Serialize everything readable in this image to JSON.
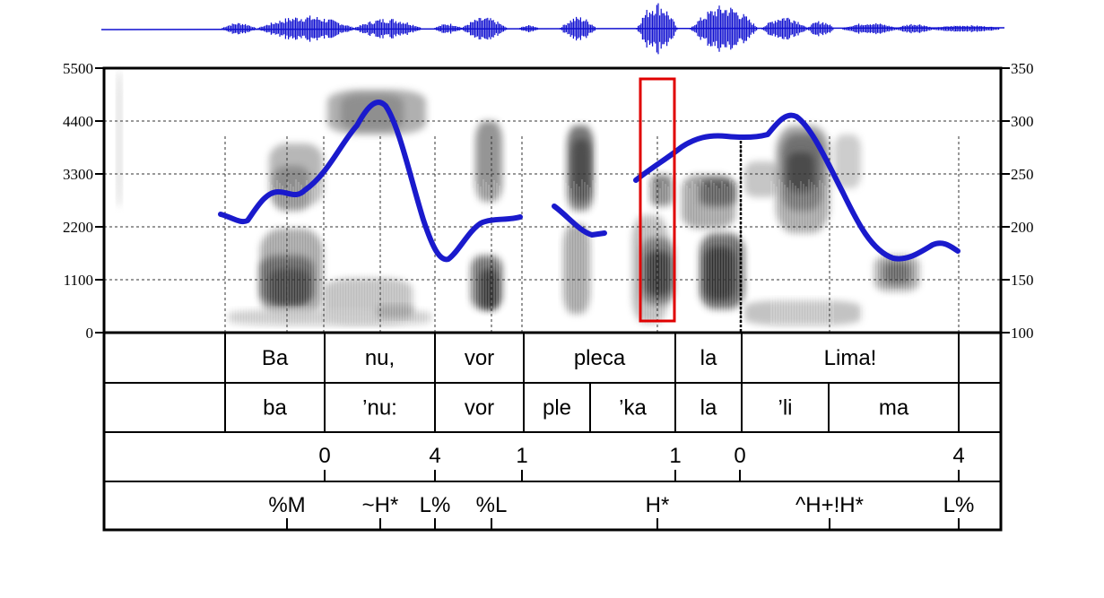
{
  "left_axis": {
    "ticks": [
      "5500",
      "4400",
      "3300",
      "2200",
      "1100",
      "0"
    ]
  },
  "right_axis": {
    "ticks": [
      "350",
      "300",
      "250",
      "200",
      "150",
      "100"
    ]
  },
  "tiers": {
    "words": [
      "Ba",
      "nu,",
      "vor",
      "pleca",
      "la",
      "Lima!"
    ],
    "syllables": [
      "ba",
      "’nu:",
      "vor",
      "ple",
      "’ka",
      "la",
      "’li",
      "ma"
    ],
    "break_indices": [
      "0",
      "4",
      "1",
      "1",
      "0",
      "4"
    ],
    "tones": [
      "%M",
      "~H*",
      "L%",
      "%L",
      "H*",
      "^H+!H*",
      "L%"
    ]
  },
  "colors": {
    "pitch": "#1a1acc",
    "waveform": "#1010d0",
    "highlight": "#e00000",
    "frame": "#000000"
  }
}
